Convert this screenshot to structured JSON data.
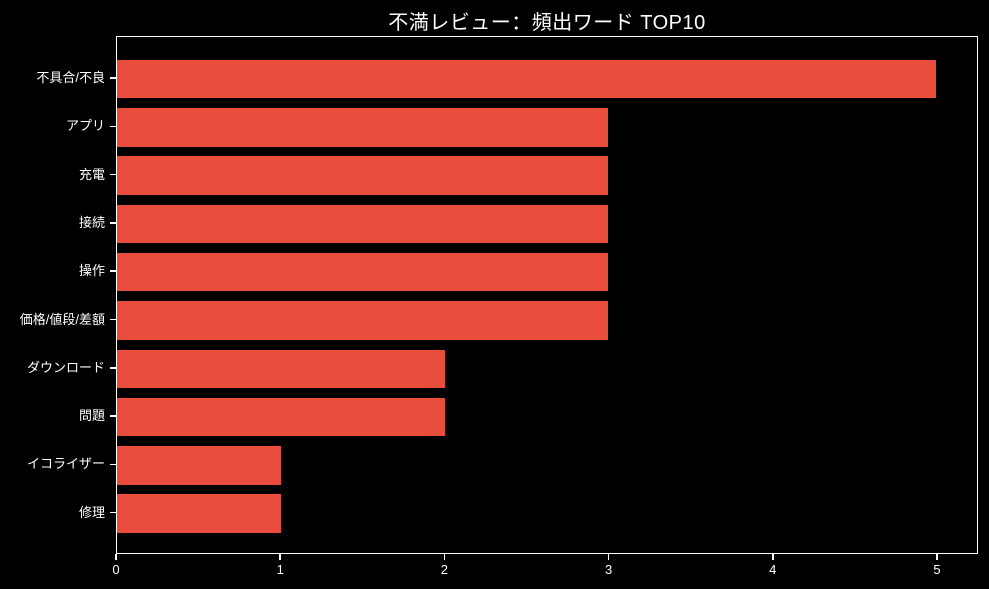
{
  "chart_data": {
    "type": "bar",
    "orientation": "horizontal",
    "title": "不満レビュー：頻出ワード TOP10",
    "categories": [
      "不具合/不良",
      "アプリ",
      "充電",
      "接続",
      "操作",
      "価格/値段/差額",
      "ダウンロード",
      "問題",
      "イコライザー",
      "修理"
    ],
    "values": [
      5,
      3,
      3,
      3,
      3,
      3,
      2,
      2,
      1,
      1
    ],
    "xlabel": "",
    "ylabel": "",
    "xlim": [
      0,
      5.25
    ],
    "x_ticks": [
      0,
      1,
      2,
      3,
      4,
      5
    ],
    "grid": false,
    "legend_position": "none",
    "bar_color": "#e74c3c",
    "background_color": "#000000",
    "text_color": "#ffffff",
    "spine_color": "#ffffff"
  }
}
